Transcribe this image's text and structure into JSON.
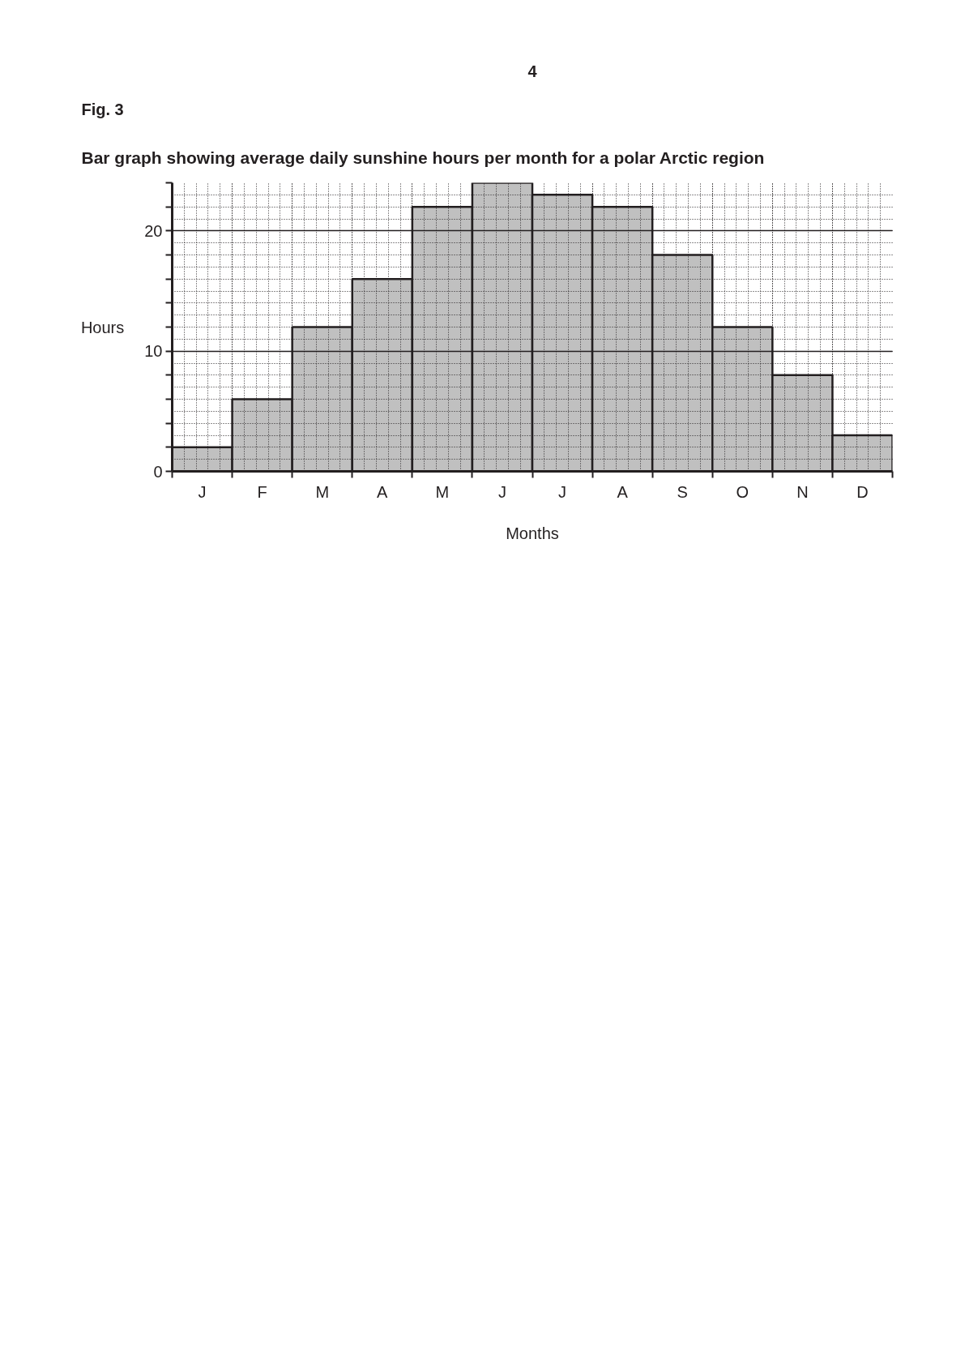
{
  "chart_data": {
    "type": "bar",
    "title": "Bar graph showing average daily sunshine hours per month for a polar Arctic region",
    "annotations": [
      "4",
      "Fig. 3"
    ],
    "xlabel": "Months",
    "ylabel": "Hours",
    "categories": [
      "J",
      "F",
      "M",
      "A",
      "M",
      "J",
      "J",
      "A",
      "S",
      "O",
      "N",
      "D"
    ],
    "values": [
      2,
      6,
      12,
      16,
      22,
      24,
      23,
      22,
      18,
      12,
      8,
      3
    ],
    "color": "#c0c0c0",
    "ylim": [
      0,
      24
    ],
    "yticks": [
      0,
      {
        "value": 2,
        "label": null
      },
      {
        "value": 4,
        "label": null
      },
      {
        "value": 6,
        "label": null
      },
      {
        "value": 8,
        "label": null
      },
      10,
      {
        "value": 12,
        "label": null
      },
      {
        "value": 14,
        "label": null
      },
      {
        "value": 16,
        "label": null
      },
      {
        "value": 18,
        "label": null
      },
      20,
      {
        "value": 22,
        "label": null
      },
      {
        "value": 24,
        "label": null
      }
    ],
    "grid": true
  }
}
